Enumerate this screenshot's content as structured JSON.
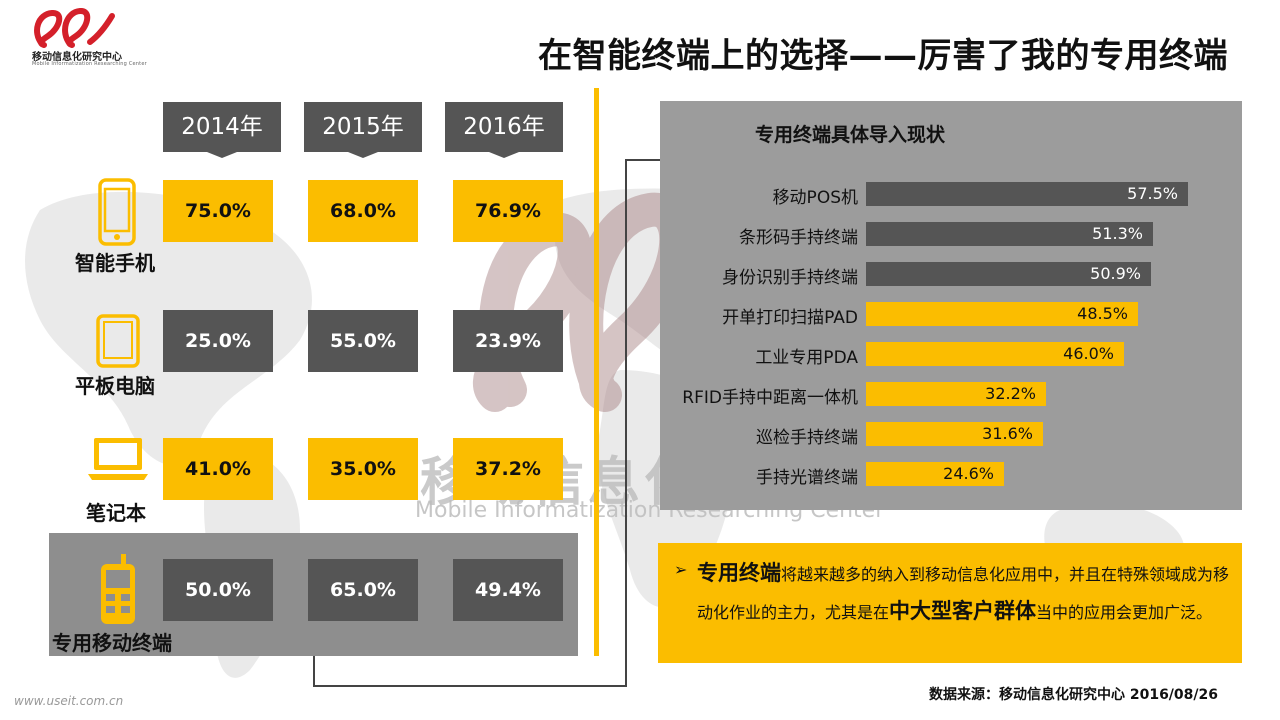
{
  "header": {
    "logo_cn": "移动信息化研究中心",
    "logo_en": "Mobile Informatization Researching Center",
    "title": "在智能终端上的选择——厉害了我的专用终端"
  },
  "watermark": {
    "cn": "移动信息化研究中心",
    "en": "Mobile  Informatization Researching Center"
  },
  "colors": {
    "accent": "#fbbd00",
    "dark": "#555555",
    "panel": "#9c9c9c"
  },
  "left_table": {
    "years": [
      "2014年",
      "2015年",
      "2016年"
    ],
    "rows": [
      {
        "label": "智能手机",
        "icon": "smartphone-icon",
        "values": [
          "75.0%",
          "68.0%",
          "76.9%"
        ],
        "cell_colors": [
          "yellow",
          "yellow",
          "yellow"
        ]
      },
      {
        "label": "平板电脑",
        "icon": "tablet-icon",
        "values": [
          "25.0%",
          "55.0%",
          "23.9%"
        ],
        "cell_colors": [
          "dark",
          "dark",
          "dark"
        ]
      },
      {
        "label": "笔记本",
        "icon": "laptop-icon",
        "values": [
          "41.0%",
          "35.0%",
          "37.2%"
        ],
        "cell_colors": [
          "yellow",
          "yellow",
          "yellow"
        ]
      },
      {
        "label": "专用移动终端",
        "icon": "dedicated-terminal-icon",
        "values": [
          "50.0%",
          "65.0%",
          "49.4%"
        ],
        "cell_colors": [
          "dark",
          "dark",
          "dark"
        ],
        "highlighted": true
      }
    ]
  },
  "chart_data": {
    "type": "bar",
    "orientation": "horizontal",
    "title": "专用终端具体导入现状",
    "categories": [
      "移动POS机",
      "条形码手持终端",
      "身份识别手持终端",
      "开单打印扫描PAD",
      "工业专用PDA",
      "RFID手持中距离一体机",
      "巡检手持终端",
      "手持光谱终端"
    ],
    "values": [
      57.5,
      51.3,
      50.9,
      48.5,
      46.0,
      32.2,
      31.6,
      24.6
    ],
    "value_labels": [
      "57.5%",
      "51.3%",
      "50.9%",
      "48.5%",
      "46.0%",
      "32.2%",
      "31.6%",
      "24.6%"
    ],
    "bar_colors": [
      "dark",
      "dark",
      "dark",
      "yellow",
      "yellow",
      "yellow",
      "yellow",
      "yellow"
    ],
    "xlim": [
      0,
      60
    ],
    "grid": false,
    "legend": "none"
  },
  "note": {
    "bullet": "➢",
    "lead": "专用终端",
    "text1": "将越来越多的纳入到移动信息化应用中，并且在特殊领域成为移动化作业的主力，尤其是在",
    "emph": "中大型客户群体",
    "text2": "当中的应用会更加广泛。"
  },
  "footer": {
    "source": "数据来源：移动信息化研究中心 2016/08/26",
    "url": "www.useit.com.cn"
  }
}
